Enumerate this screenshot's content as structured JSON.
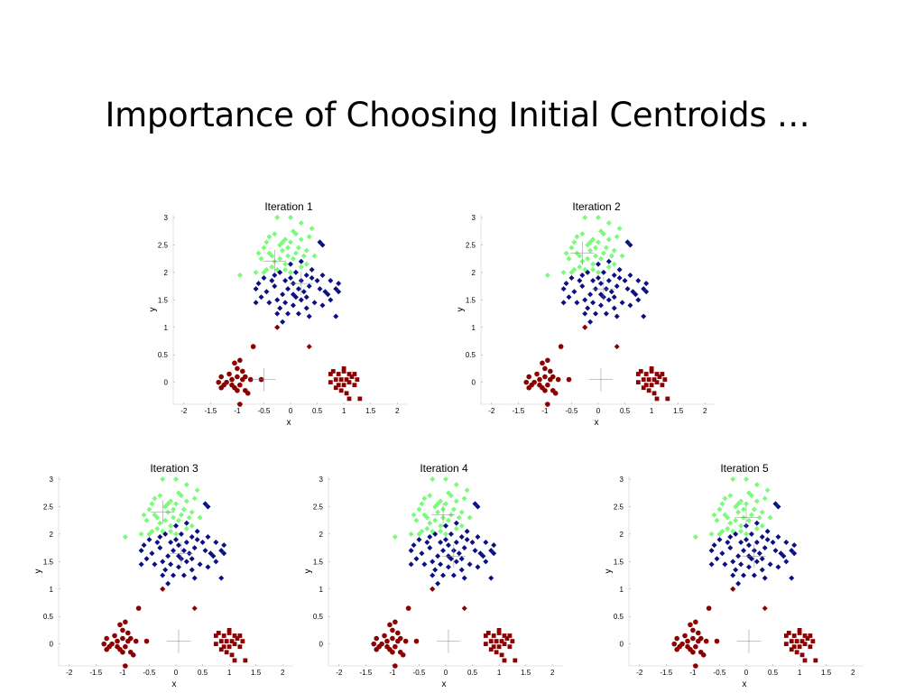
{
  "slide": {
    "title": "Importance of Choosing Initial Centroids …"
  },
  "colors": {
    "cluster_green": "#7CFA7C",
    "cluster_blue": "#0A0F82",
    "cluster_red": "#8B0000"
  },
  "chart_data": [
    {
      "type": "scatter",
      "title": "Iteration 1",
      "xlabel": "x",
      "ylabel": "y",
      "xlim": [
        -2.2,
        2.2
      ],
      "ylim": [
        -0.4,
        3.05
      ],
      "xticks": [
        "-2",
        "-1.5",
        "-1",
        "-0.5",
        "0",
        "0.5",
        "1",
        "1.5",
        "2"
      ],
      "yticks": [
        "0",
        "0.5",
        "1",
        "1.5",
        "2",
        "2.5",
        "3"
      ],
      "centroids": [
        [
          -0.3,
          2.2
        ],
        [
          0.2,
          1.8
        ],
        [
          -0.5,
          0.05
        ]
      ]
    },
    {
      "type": "scatter",
      "title": "Iteration 2",
      "xlabel": "x",
      "ylabel": "y",
      "xlim": [
        -2.2,
        2.2
      ],
      "ylim": [
        -0.4,
        3.05
      ],
      "xticks": [
        "-2",
        "-1.5",
        "-1",
        "-0.5",
        "0",
        "0.5",
        "1",
        "1.5",
        "2"
      ],
      "yticks": [
        "0",
        "0.5",
        "1",
        "1.5",
        "2",
        "2.5",
        "3"
      ],
      "centroids": [
        [
          -0.3,
          2.35
        ],
        [
          0.1,
          1.7
        ],
        [
          0.05,
          0.05
        ]
      ]
    },
    {
      "type": "scatter",
      "title": "Iteration 3",
      "xlabel": "x",
      "ylabel": "y",
      "xlim": [
        -2.2,
        2.2
      ],
      "ylim": [
        -0.4,
        3.05
      ],
      "xticks": [
        "-2",
        "-1.5",
        "-1",
        "-0.5",
        "0",
        "0.5",
        "1",
        "1.5",
        "2"
      ],
      "yticks": [
        "0",
        "0.5",
        "1",
        "1.5",
        "2",
        "2.5",
        "3"
      ],
      "centroids": [
        [
          -0.25,
          2.4
        ],
        [
          0.1,
          1.65
        ],
        [
          0.05,
          0.05
        ]
      ]
    },
    {
      "type": "scatter",
      "title": "Iteration 4",
      "xlabel": "x",
      "ylabel": "y",
      "xlim": [
        -2.2,
        2.2
      ],
      "ylim": [
        -0.4,
        3.05
      ],
      "xticks": [
        "-2",
        "-1.5",
        "-1",
        "-0.5",
        "0",
        "0.5",
        "1",
        "1.5",
        "2"
      ],
      "yticks": [
        "0",
        "0.5",
        "1",
        "1.5",
        "2",
        "2.5",
        "3"
      ],
      "centroids": [
        [
          -0.05,
          2.35
        ],
        [
          0.15,
          1.6
        ],
        [
          0.05,
          0.05
        ]
      ]
    },
    {
      "type": "scatter",
      "title": "Iteration 5",
      "xlabel": "x",
      "ylabel": "y",
      "xlim": [
        -2.2,
        2.2
      ],
      "ylim": [
        -0.4,
        3.05
      ],
      "xticks": [
        "-2",
        "-1.5",
        "-1",
        "-0.5",
        "0",
        "0.5",
        "1",
        "1.5",
        "2"
      ],
      "yticks": [
        "0",
        "0.5",
        "1",
        "1.5",
        "2",
        "2.5",
        "3"
      ],
      "centroids": [
        [
          0.0,
          2.3
        ],
        [
          0.15,
          1.6
        ],
        [
          0.05,
          0.05
        ]
      ]
    }
  ],
  "clusters": {
    "top": [
      [
        -0.3,
        2.2
      ],
      [
        -0.5,
        2.45
      ],
      [
        -0.45,
        2.55
      ],
      [
        -0.4,
        2.35
      ],
      [
        -0.2,
        2.5
      ],
      [
        -0.1,
        2.6
      ],
      [
        0.0,
        2.55
      ],
      [
        0.1,
        2.7
      ],
      [
        0.2,
        2.6
      ],
      [
        0.35,
        2.65
      ],
      [
        0.4,
        2.8
      ],
      [
        -0.15,
        2.4
      ],
      [
        -0.05,
        2.3
      ],
      [
        0.15,
        2.45
      ],
      [
        0.3,
        2.4
      ],
      [
        -0.35,
        2.1
      ],
      [
        -0.55,
        2.25
      ],
      [
        -0.25,
        2.05
      ],
      [
        -0.6,
        2.35
      ],
      [
        0.05,
        2.25
      ],
      [
        -0.1,
        2.15
      ],
      [
        0.25,
        2.3
      ],
      [
        -0.3,
        2.7
      ],
      [
        -0.45,
        2.05
      ],
      [
        0.0,
        2.0
      ],
      [
        0.2,
        2.1
      ],
      [
        -0.2,
        2.25
      ],
      [
        -0.65,
        2.0
      ],
      [
        0.1,
        2.35
      ],
      [
        -0.95,
        1.95
      ],
      [
        0.45,
        2.3
      ],
      [
        0.55,
        2.55
      ],
      [
        -0.05,
        2.45
      ],
      [
        0.2,
        2.9
      ],
      [
        -0.25,
        3.0
      ],
      [
        0.0,
        3.0
      ],
      [
        -0.4,
        2.65
      ],
      [
        -0.15,
        2.55
      ],
      [
        0.3,
        2.15
      ],
      [
        -0.35,
        2.3
      ],
      [
        0.05,
        2.75
      ],
      [
        -0.5,
        2.0
      ],
      [
        -0.1,
        2.05
      ]
    ],
    "mid": [
      [
        0.55,
        2.55
      ],
      [
        0.6,
        2.5
      ],
      [
        -0.2,
        2.0
      ],
      [
        -0.1,
        1.85
      ],
      [
        0.0,
        1.9
      ],
      [
        0.1,
        2.0
      ],
      [
        0.2,
        1.85
      ],
      [
        0.3,
        1.95
      ],
      [
        0.4,
        1.9
      ],
      [
        0.5,
        1.85
      ],
      [
        0.55,
        1.7
      ],
      [
        0.65,
        1.65
      ],
      [
        0.7,
        1.6
      ],
      [
        0.85,
        1.7
      ],
      [
        0.9,
        1.8
      ],
      [
        0.9,
        1.65
      ],
      [
        0.75,
        1.85
      ],
      [
        0.35,
        1.75
      ],
      [
        0.25,
        1.65
      ],
      [
        0.15,
        1.7
      ],
      [
        0.05,
        1.6
      ],
      [
        -0.05,
        1.7
      ],
      [
        -0.15,
        1.6
      ],
      [
        -0.3,
        1.75
      ],
      [
        -0.45,
        1.65
      ],
      [
        -0.55,
        1.55
      ],
      [
        -0.6,
        1.8
      ],
      [
        -0.65,
        1.7
      ],
      [
        -0.35,
        1.85
      ],
      [
        -0.25,
        1.5
      ],
      [
        -0.1,
        1.45
      ],
      [
        0.05,
        1.4
      ],
      [
        0.2,
        1.5
      ],
      [
        0.3,
        1.35
      ],
      [
        0.45,
        1.45
      ],
      [
        0.6,
        1.4
      ],
      [
        -0.4,
        1.45
      ],
      [
        -0.2,
        1.35
      ],
      [
        0.1,
        1.55
      ],
      [
        -0.05,
        1.25
      ],
      [
        0.15,
        1.25
      ],
      [
        -0.25,
        1.25
      ],
      [
        0.85,
        1.2
      ],
      [
        0.35,
        1.2
      ],
      [
        -0.5,
        1.9
      ],
      [
        0.0,
        2.15
      ],
      [
        0.2,
        2.2
      ],
      [
        -0.3,
        1.95
      ],
      [
        0.4,
        2.05
      ],
      [
        0.75,
        1.5
      ],
      [
        0.3,
        1.55
      ],
      [
        -0.15,
        1.1
      ],
      [
        -0.25,
        1.0
      ],
      [
        0.05,
        1.8
      ],
      [
        0.6,
        1.95
      ],
      [
        -0.65,
        1.45
      ]
    ],
    "diamond_red": [
      [
        -0.25,
        1.0
      ],
      [
        0.35,
        0.65
      ]
    ],
    "circle_red": [
      [
        -0.7,
        0.65
      ],
      [
        -1.05,
        0.35
      ],
      [
        -0.95,
        0.4
      ],
      [
        -1.0,
        0.25
      ],
      [
        -0.9,
        0.2
      ],
      [
        -1.15,
        0.15
      ],
      [
        -1.3,
        0.1
      ],
      [
        -1.1,
        0.05
      ],
      [
        -1.0,
        0.1
      ],
      [
        -0.85,
        0.1
      ],
      [
        -0.75,
        0.05
      ],
      [
        -1.2,
        0.0
      ],
      [
        -1.1,
        -0.05
      ],
      [
        -0.95,
        -0.05
      ],
      [
        -0.85,
        -0.15
      ],
      [
        -1.3,
        -0.1
      ],
      [
        -1.25,
        -0.05
      ],
      [
        -1.05,
        -0.1
      ],
      [
        -0.9,
        0.05
      ],
      [
        -0.55,
        0.05
      ],
      [
        -0.95,
        -0.4
      ],
      [
        -1.35,
        0.0
      ],
      [
        -0.8,
        -0.2
      ],
      [
        -1.0,
        -0.15
      ]
    ],
    "square_red": [
      [
        0.8,
        0.2
      ],
      [
        0.9,
        0.15
      ],
      [
        1.0,
        0.2
      ],
      [
        1.1,
        0.15
      ],
      [
        1.2,
        0.15
      ],
      [
        0.95,
        0.05
      ],
      [
        1.05,
        0.05
      ],
      [
        1.15,
        0.1
      ],
      [
        0.85,
        0.05
      ],
      [
        0.75,
        0.0
      ],
      [
        0.9,
        -0.05
      ],
      [
        1.0,
        -0.05
      ],
      [
        1.1,
        0.0
      ],
      [
        1.25,
        0.05
      ],
      [
        0.95,
        -0.15
      ],
      [
        1.05,
        -0.2
      ],
      [
        1.3,
        -0.3
      ],
      [
        1.1,
        -0.3
      ],
      [
        0.75,
        0.15
      ],
      [
        1.0,
        0.25
      ],
      [
        1.2,
        -0.05
      ],
      [
        0.85,
        -0.1
      ]
    ]
  }
}
